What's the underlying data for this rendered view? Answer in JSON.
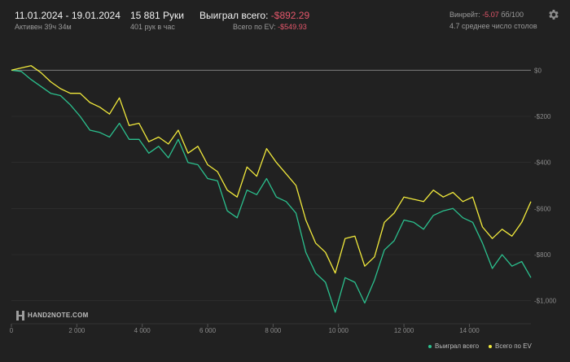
{
  "header": {
    "date_range": "11.01.2024 - 19.01.2024",
    "active_time": "Активен 39ч 34м",
    "hands": "15 881 Руки",
    "hands_per_hour": "401 рук в час",
    "won_label": "Выиграл всего:",
    "won_value": "-$892.29",
    "ev_label": "Всего по EV:",
    "ev_value": "-$549.93",
    "winrate_label": "Винрейт:",
    "winrate_value": "-5.07",
    "winrate_rest": "бб/100",
    "tables": "4.7 среднее число столов"
  },
  "colors": {
    "background": "#212121",
    "won_series": "#2bc08e",
    "ev_series": "#f2ea3c",
    "negative": "#e5576b"
  },
  "icons": {
    "settings": "gear-icon",
    "logo": "hand2note-logo-icon"
  },
  "logo_text": "HAND2NOTE.COM",
  "chart_data": {
    "type": "line",
    "xlim": [
      0,
      15881
    ],
    "ylim": [
      -1100,
      100
    ],
    "x_ticks": [
      0,
      2000,
      4000,
      6000,
      8000,
      10000,
      12000,
      14000
    ],
    "x_tick_labels": [
      "0",
      "2 000",
      "4 000",
      "6 000",
      "8 000",
      "10 000",
      "12 000",
      "14 000"
    ],
    "y_ticks": [
      0,
      -200,
      -400,
      -600,
      -800,
      -1000
    ],
    "y_tick_labels": [
      "$0",
      "-$200",
      "-$400",
      "-$600",
      "-$800",
      "-$1,000"
    ],
    "grid": true,
    "legend_position": "bottom-right",
    "series": [
      {
        "name": "Выиграл всего",
        "x": [
          0,
          300,
          600,
          900,
          1200,
          1500,
          1800,
          2100,
          2400,
          2700,
          3000,
          3300,
          3600,
          3900,
          4200,
          4500,
          4800,
          5100,
          5400,
          5700,
          6000,
          6300,
          6600,
          6900,
          7200,
          7500,
          7800,
          8100,
          8400,
          8700,
          9000,
          9300,
          9600,
          9900,
          10200,
          10500,
          10800,
          11100,
          11400,
          11700,
          12000,
          12300,
          12600,
          12900,
          13200,
          13500,
          13800,
          14100,
          14400,
          14700,
          15000,
          15300,
          15600,
          15881
        ],
        "values": [
          0,
          -5,
          -40,
          -70,
          -100,
          -110,
          -150,
          -200,
          -260,
          -270,
          -290,
          -230,
          -300,
          -300,
          -360,
          -330,
          -380,
          -300,
          -400,
          -410,
          -470,
          -480,
          -610,
          -640,
          -520,
          -540,
          -470,
          -550,
          -570,
          -620,
          -790,
          -880,
          -920,
          -1050,
          -900,
          -920,
          -1010,
          -910,
          -780,
          -740,
          -650,
          -660,
          -690,
          -630,
          -610,
          -600,
          -640,
          -660,
          -750,
          -860,
          -800,
          -850,
          -830,
          -900
        ]
      },
      {
        "name": "Всего по EV",
        "x": [
          0,
          300,
          600,
          900,
          1200,
          1500,
          1800,
          2100,
          2400,
          2700,
          3000,
          3300,
          3600,
          3900,
          4200,
          4500,
          4800,
          5100,
          5400,
          5700,
          6000,
          6300,
          6600,
          6900,
          7200,
          7500,
          7800,
          8100,
          8400,
          8700,
          9000,
          9300,
          9600,
          9900,
          10200,
          10500,
          10800,
          11100,
          11400,
          11700,
          12000,
          12300,
          12600,
          12900,
          13200,
          13500,
          13800,
          14100,
          14400,
          14700,
          15000,
          15300,
          15600,
          15881
        ],
        "values": [
          0,
          10,
          20,
          -10,
          -50,
          -80,
          -100,
          -100,
          -140,
          -160,
          -190,
          -120,
          -240,
          -230,
          -310,
          -290,
          -320,
          -260,
          -360,
          -330,
          -410,
          -440,
          -520,
          -550,
          -420,
          -460,
          -340,
          -400,
          -450,
          -500,
          -650,
          -750,
          -790,
          -880,
          -730,
          -720,
          -850,
          -810,
          -660,
          -620,
          -550,
          -560,
          -570,
          -520,
          -550,
          -530,
          -570,
          -550,
          -680,
          -730,
          -690,
          -720,
          -660,
          -570
        ]
      }
    ]
  }
}
